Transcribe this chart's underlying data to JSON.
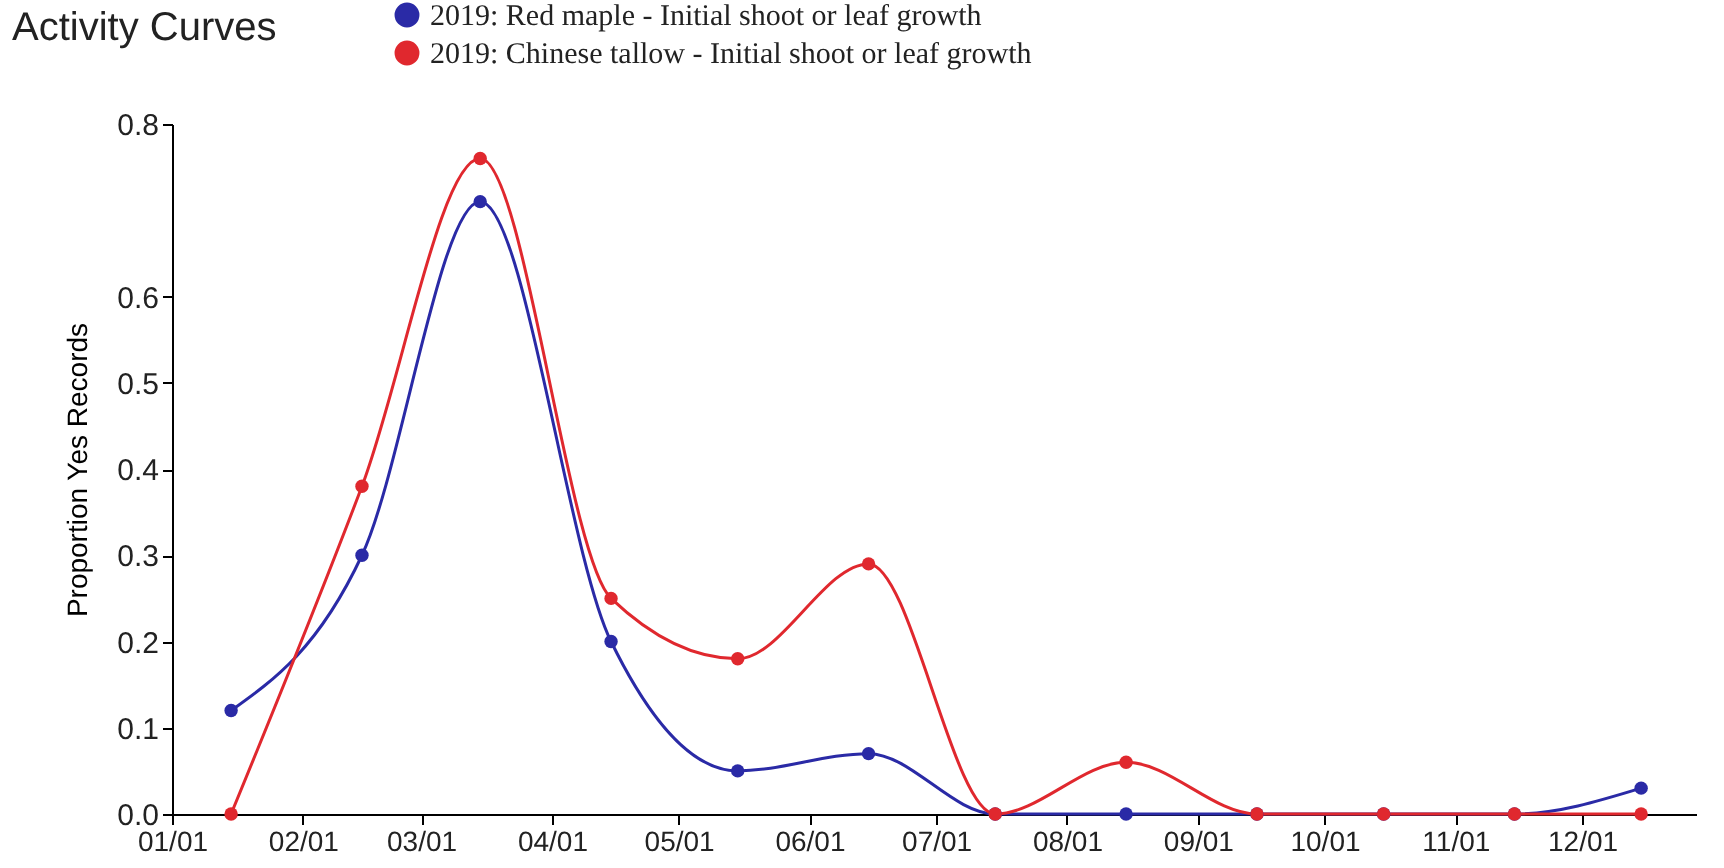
{
  "chart_data": {
    "type": "line",
    "title": "Activity Curves",
    "ylabel": "Proportion Yes Records",
    "x": [
      "--01-15",
      "--02-15",
      "--03-15",
      "--04-15",
      "--05-15",
      "--06-15",
      "--07-15",
      "--08-15",
      "--09-15",
      "--10-15",
      "--11-15",
      "--12-15"
    ],
    "series": [
      {
        "name": "2019: Red maple - Initial shoot or leaf growth",
        "color": "#2a2aa6",
        "values": [
          0.12,
          0.3,
          0.71,
          0.2,
          0.05,
          0.07,
          0,
          0,
          0,
          0,
          0,
          0.03
        ]
      },
      {
        "name": "2019: Chinese tallow - Initial shoot or leaf growth",
        "color": "#e0282e",
        "values": [
          0,
          0.38,
          0.76,
          0.25,
          0.18,
          0.29,
          0,
          0.06,
          0,
          0,
          0,
          0
        ]
      }
    ],
    "xlim": [
      "--01-01",
      "--12-28"
    ],
    "xticks": [
      {
        "value": "--01-01",
        "label": "01/01"
      },
      {
        "value": "--02-01",
        "label": "02/01"
      },
      {
        "value": "--03-01",
        "label": "03/01"
      },
      {
        "value": "--04-01",
        "label": "04/01"
      },
      {
        "value": "--05-01",
        "label": "05/01"
      },
      {
        "value": "--06-01",
        "label": "06/01"
      },
      {
        "value": "--07-01",
        "label": "07/01"
      },
      {
        "value": "--08-01",
        "label": "08/01"
      },
      {
        "value": "--09-01",
        "label": "09/01"
      },
      {
        "value": "--10-01",
        "label": "10/01"
      },
      {
        "value": "--11-01",
        "label": "11/01"
      },
      {
        "value": "--12-01",
        "label": "12/01"
      }
    ],
    "ylim": [
      0,
      0.8
    ],
    "yticks": [
      {
        "value": 0,
        "label": "0.0"
      },
      {
        "value": 0.1,
        "label": "0.1"
      },
      {
        "value": 0.2,
        "label": "0.2"
      },
      {
        "value": 0.3,
        "label": "0.3"
      },
      {
        "value": 0.4,
        "label": "0.4"
      },
      {
        "value": 0.5,
        "label": "0.5"
      },
      {
        "value": 0.6,
        "label": "0.6"
      },
      {
        "value": 0.8,
        "label": "0.8"
      }
    ],
    "legend": "top left",
    "marker": "circle",
    "line_style": "solid",
    "grid": false
  }
}
